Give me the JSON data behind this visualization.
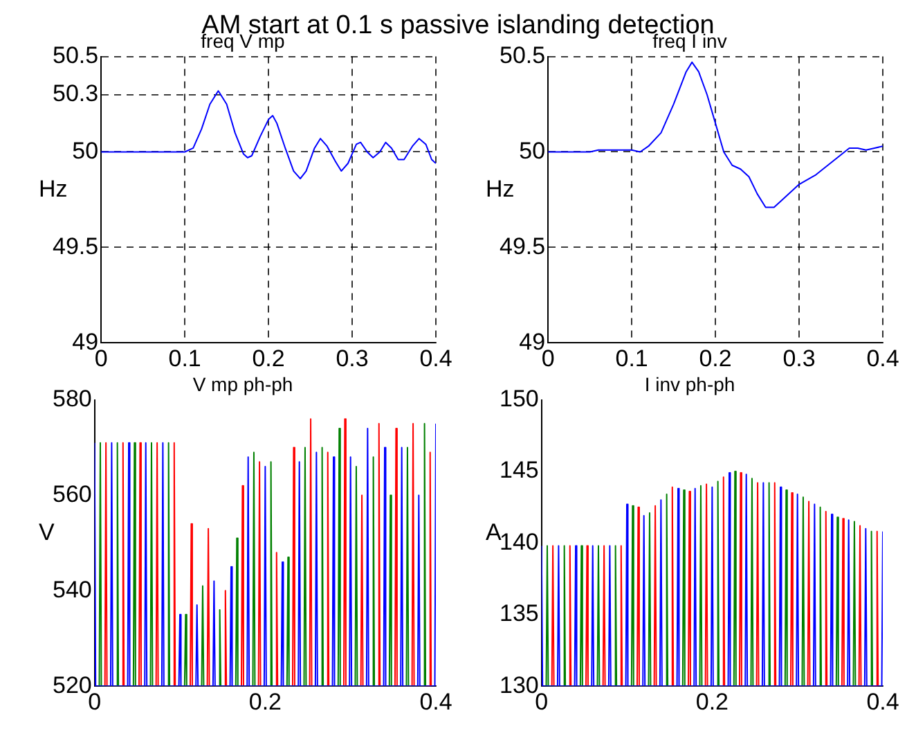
{
  "chart_data": [
    {
      "type": "other",
      "title": "AM start at 0.1 s passive islanding detection"
    },
    {
      "type": "line",
      "title": "freq V mp",
      "ylabel": "Hz",
      "xlim": [
        0,
        0.4
      ],
      "xticks": [
        0,
        0.1,
        0.2,
        0.3,
        0.4
      ],
      "ylim": [
        49,
        50.5
      ],
      "yticks": [
        49,
        49.5,
        50,
        50.3,
        50.5
      ],
      "grid": true,
      "marker": "none",
      "series": [
        {
          "color": "#0000ff",
          "x": [
            0,
            0.1,
            0.11,
            0.12,
            0.13,
            0.14,
            0.15,
            0.16,
            0.17,
            0.175,
            0.18,
            0.19,
            0.2,
            0.205,
            0.21,
            0.22,
            0.23,
            0.238,
            0.245,
            0.255,
            0.262,
            0.27,
            0.28,
            0.287,
            0.295,
            0.305,
            0.31,
            0.318,
            0.325,
            0.333,
            0.34,
            0.347,
            0.355,
            0.362,
            0.372,
            0.38,
            0.388,
            0.395,
            0.4
          ],
          "values": [
            50,
            50,
            50.02,
            50.12,
            50.25,
            50.32,
            50.25,
            50.1,
            49.99,
            49.97,
            49.98,
            50.08,
            50.17,
            50.19,
            50.15,
            50.02,
            49.9,
            49.86,
            49.9,
            50.02,
            50.07,
            50.03,
            49.95,
            49.9,
            49.94,
            50.04,
            50.05,
            50,
            49.97,
            50,
            50.05,
            50.02,
            49.96,
            49.96,
            50.03,
            50.07,
            50.04,
            49.96,
            49.94
          ]
        }
      ]
    },
    {
      "type": "line",
      "title": "freq I inv",
      "ylabel": "Hz",
      "xlim": [
        0,
        0.4
      ],
      "xticks": [
        0,
        0.1,
        0.2,
        0.3,
        0.4
      ],
      "ylim": [
        49,
        50.5
      ],
      "yticks": [
        49,
        49.5,
        50,
        50.5
      ],
      "grid": true,
      "marker": "none",
      "series": [
        {
          "color": "#0000ff",
          "x": [
            0,
            0.05,
            0.06,
            0.1,
            0.11,
            0.12,
            0.135,
            0.15,
            0.165,
            0.172,
            0.18,
            0.19,
            0.2,
            0.21,
            0.22,
            0.23,
            0.24,
            0.25,
            0.26,
            0.27,
            0.28,
            0.3,
            0.32,
            0.34,
            0.36,
            0.37,
            0.38,
            0.39,
            0.4
          ],
          "values": [
            50,
            50,
            50.01,
            50.01,
            50,
            50.03,
            50.1,
            50.25,
            50.42,
            50.47,
            50.42,
            50.3,
            50.15,
            50,
            49.93,
            49.91,
            49.87,
            49.78,
            49.71,
            49.71,
            49.75,
            49.83,
            49.88,
            49.95,
            50.02,
            50.02,
            50.01,
            50.02,
            50.03
          ]
        }
      ]
    },
    {
      "type": "line",
      "title": "V mp ph-ph",
      "ylabel": "V",
      "xlim": [
        0,
        0.4
      ],
      "xticks": [
        0,
        0.2,
        0.4
      ],
      "ylim": [
        520,
        580
      ],
      "yticks": [
        520,
        540,
        560,
        580
      ],
      "marker": "none",
      "series": [
        {
          "color": "#0000ff",
          "x": [
            0,
            0.0012,
            0.0188,
            0.02,
            0.0212,
            0.0388,
            0.04,
            0.0412,
            0.0588,
            0.06,
            0.0612,
            0.0788,
            0.08,
            0.0812,
            0.0988,
            0.1,
            0.1012,
            0.1188,
            0.12,
            0.1212,
            0.1388,
            0.14,
            0.1412,
            0.1588,
            0.16,
            0.1612,
            0.1788,
            0.18,
            0.1812,
            0.1988,
            0.2,
            0.2012,
            0.2188,
            0.22,
            0.2212,
            0.2388,
            0.24,
            0.2412,
            0.2588,
            0.26,
            0.2612,
            0.2788,
            0.28,
            0.2812,
            0.2988,
            0.3,
            0.3012,
            0.3188,
            0.32,
            0.3212,
            0.3388,
            0.34,
            0.3412,
            0.3588,
            0.36,
            0.3612,
            0.3788,
            0.38,
            0.3812,
            0.3988,
            0.4
          ],
          "values": [
            571,
            520,
            520,
            571,
            520,
            520,
            571,
            520,
            520,
            571,
            520,
            520,
            571,
            520,
            520,
            535,
            520,
            520,
            537,
            520,
            520,
            542,
            520,
            520,
            545,
            520,
            520,
            568,
            520,
            520,
            566,
            520,
            520,
            546,
            520,
            520,
            567,
            520,
            520,
            569,
            520,
            520,
            568,
            520,
            520,
            568,
            520,
            520,
            574,
            520,
            520,
            570,
            520,
            520,
            570,
            520,
            520,
            560,
            520,
            520,
            575
          ]
        },
        {
          "color": "#008000",
          "x": [
            0.0055,
            0.0067,
            0.0079,
            0.0255,
            0.0267,
            0.0279,
            0.0455,
            0.0467,
            0.0479,
            0.0655,
            0.0667,
            0.0679,
            0.0855,
            0.0867,
            0.0879,
            0.1055,
            0.1067,
            0.1079,
            0.1255,
            0.1267,
            0.1279,
            0.1455,
            0.1467,
            0.1479,
            0.1655,
            0.1667,
            0.1679,
            0.1855,
            0.1867,
            0.1879,
            0.2055,
            0.2067,
            0.2079,
            0.2255,
            0.2267,
            0.2279,
            0.2455,
            0.2467,
            0.2479,
            0.2655,
            0.2667,
            0.2679,
            0.2855,
            0.2867,
            0.2879,
            0.3055,
            0.3067,
            0.3079,
            0.3255,
            0.3267,
            0.3279,
            0.3455,
            0.3467,
            0.3479,
            0.3655,
            0.3667,
            0.3679,
            0.3855,
            0.3867,
            0.3879
          ],
          "values": [
            520,
            571,
            520,
            520,
            571,
            520,
            520,
            571,
            520,
            520,
            571,
            520,
            520,
            571,
            520,
            520,
            535,
            520,
            520,
            541,
            520,
            520,
            536,
            520,
            520,
            551,
            520,
            520,
            569,
            520,
            520,
            567,
            520,
            520,
            547,
            520,
            520,
            570,
            520,
            520,
            570,
            520,
            520,
            574,
            520,
            520,
            566,
            520,
            520,
            568,
            520,
            520,
            560,
            520,
            520,
            570,
            520,
            520,
            575,
            520
          ]
        },
        {
          "color": "#ff0000",
          "x": [
            0.0121,
            0.0133,
            0.0145,
            0.0321,
            0.0333,
            0.0345,
            0.0521,
            0.0533,
            0.0545,
            0.0721,
            0.0733,
            0.0745,
            0.0921,
            0.0933,
            0.0945,
            0.1121,
            0.1133,
            0.1145,
            0.1321,
            0.1333,
            0.1345,
            0.1521,
            0.1533,
            0.1545,
            0.1721,
            0.1733,
            0.1745,
            0.1921,
            0.1933,
            0.1945,
            0.2121,
            0.2133,
            0.2145,
            0.2321,
            0.2333,
            0.2345,
            0.2521,
            0.2533,
            0.2545,
            0.2721,
            0.2733,
            0.2745,
            0.2921,
            0.2933,
            0.2945,
            0.3121,
            0.3133,
            0.3145,
            0.3321,
            0.3333,
            0.3345,
            0.3521,
            0.3533,
            0.3545,
            0.3721,
            0.3733,
            0.3745,
            0.3921,
            0.3933,
            0.3945
          ],
          "values": [
            520,
            571,
            520,
            520,
            571,
            520,
            520,
            571,
            520,
            520,
            571,
            520,
            520,
            571,
            520,
            520,
            554,
            520,
            520,
            553,
            520,
            520,
            540,
            520,
            520,
            562,
            520,
            520,
            567,
            520,
            520,
            548,
            520,
            520,
            570,
            520,
            520,
            576,
            520,
            520,
            569,
            520,
            520,
            576,
            520,
            520,
            560,
            520,
            520,
            575,
            520,
            520,
            574,
            520,
            520,
            575,
            520,
            520,
            569,
            520
          ]
        }
      ]
    },
    {
      "type": "line",
      "title": "I inv ph-ph",
      "ylabel": "A",
      "xlim": [
        0,
        0.4
      ],
      "xticks": [
        0,
        0.2,
        0.4
      ],
      "ylim": [
        130,
        150
      ],
      "yticks": [
        130,
        135,
        140,
        145,
        150
      ],
      "marker": "none",
      "series": [
        {
          "color": "#0000ff",
          "x": [
            0,
            0.0012,
            0.0188,
            0.02,
            0.0212,
            0.0388,
            0.04,
            0.0412,
            0.0588,
            0.06,
            0.0612,
            0.0788,
            0.08,
            0.0812,
            0.0988,
            0.1,
            0.1012,
            0.1188,
            0.12,
            0.1212,
            0.1388,
            0.14,
            0.1412,
            0.1588,
            0.16,
            0.1612,
            0.1788,
            0.18,
            0.1812,
            0.1988,
            0.2,
            0.2012,
            0.2188,
            0.22,
            0.2212,
            0.2388,
            0.24,
            0.2412,
            0.2588,
            0.26,
            0.2612,
            0.2788,
            0.28,
            0.2812,
            0.2988,
            0.3,
            0.3012,
            0.3188,
            0.32,
            0.3212,
            0.3388,
            0.34,
            0.3412,
            0.3588,
            0.36,
            0.3612,
            0.3788,
            0.38,
            0.3812,
            0.3988,
            0.4
          ],
          "values": [
            139.8,
            130,
            130,
            139.8,
            130,
            130,
            139.8,
            130,
            130,
            139.8,
            130,
            130,
            139.8,
            130,
            130,
            142.7,
            130,
            130,
            141.9,
            130,
            130,
            143,
            130,
            130,
            143.8,
            130,
            130,
            143.8,
            130,
            130,
            143.9,
            130,
            130,
            144.9,
            130,
            130,
            144.8,
            130,
            130,
            144.2,
            130,
            130,
            143.9,
            130,
            130,
            143.4,
            130,
            130,
            142.7,
            130,
            130,
            142,
            130,
            130,
            141.6,
            130,
            130,
            141,
            130,
            130,
            140.8
          ]
        },
        {
          "color": "#008000",
          "x": [
            0.0055,
            0.0067,
            0.0079,
            0.0255,
            0.0267,
            0.0279,
            0.0455,
            0.0467,
            0.0479,
            0.0655,
            0.0667,
            0.0679,
            0.0855,
            0.0867,
            0.0879,
            0.1055,
            0.1067,
            0.1079,
            0.1255,
            0.1267,
            0.1279,
            0.1455,
            0.1467,
            0.1479,
            0.1655,
            0.1667,
            0.1679,
            0.1855,
            0.1867,
            0.1879,
            0.2055,
            0.2067,
            0.2079,
            0.2255,
            0.2267,
            0.2279,
            0.2455,
            0.2467,
            0.2479,
            0.2655,
            0.2667,
            0.2679,
            0.2855,
            0.2867,
            0.2879,
            0.3055,
            0.3067,
            0.3079,
            0.3255,
            0.3267,
            0.3279,
            0.3455,
            0.3467,
            0.3479,
            0.3655,
            0.3667,
            0.3679,
            0.3855,
            0.3867,
            0.3879
          ],
          "values": [
            130,
            139.8,
            130,
            130,
            139.8,
            130,
            130,
            139.8,
            130,
            130,
            139.8,
            130,
            130,
            139.8,
            130,
            130,
            142.6,
            130,
            130,
            142.1,
            130,
            130,
            143.4,
            130,
            130,
            143.7,
            130,
            130,
            144,
            130,
            130,
            144.3,
            130,
            130,
            145,
            130,
            130,
            144.5,
            130,
            130,
            144.2,
            130,
            130,
            143.7,
            130,
            130,
            143.2,
            130,
            130,
            142.5,
            130,
            130,
            141.8,
            130,
            130,
            141.5,
            130,
            130,
            140.8,
            130
          ]
        },
        {
          "color": "#ff0000",
          "x": [
            0.0121,
            0.0133,
            0.0145,
            0.0321,
            0.0333,
            0.0345,
            0.0521,
            0.0533,
            0.0545,
            0.0721,
            0.0733,
            0.0745,
            0.0921,
            0.0933,
            0.0945,
            0.1121,
            0.1133,
            0.1145,
            0.1321,
            0.1333,
            0.1345,
            0.1521,
            0.1533,
            0.1545,
            0.1721,
            0.1733,
            0.1745,
            0.1921,
            0.1933,
            0.1945,
            0.2121,
            0.2133,
            0.2145,
            0.2321,
            0.2333,
            0.2345,
            0.2521,
            0.2533,
            0.2545,
            0.2721,
            0.2733,
            0.2745,
            0.2921,
            0.2933,
            0.2945,
            0.3121,
            0.3133,
            0.3145,
            0.3321,
            0.3333,
            0.3345,
            0.3521,
            0.3533,
            0.3545,
            0.3721,
            0.3733,
            0.3745,
            0.3921,
            0.3933,
            0.3945
          ],
          "values": [
            130,
            139.8,
            130,
            130,
            139.8,
            130,
            130,
            139.8,
            130,
            130,
            139.8,
            130,
            130,
            139.8,
            130,
            130,
            142.5,
            130,
            130,
            142.6,
            130,
            130,
            143.9,
            130,
            130,
            143.6,
            130,
            130,
            144.1,
            130,
            130,
            144.6,
            130,
            130,
            144.9,
            130,
            130,
            144.2,
            130,
            130,
            144.2,
            130,
            130,
            143.5,
            130,
            130,
            142.9,
            130,
            130,
            142.2,
            130,
            130,
            141.7,
            130,
            130,
            141.2,
            130,
            130,
            140.8,
            130
          ]
        }
      ]
    }
  ]
}
